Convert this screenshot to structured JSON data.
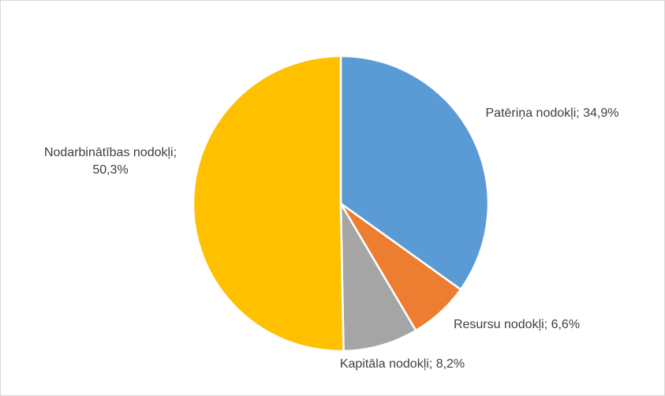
{
  "chart_data": {
    "type": "pie",
    "values": [
      34.9,
      6.6,
      8.2,
      50.3
    ],
    "value_labels": [
      "Patēriņa nodokļi; 34,9%",
      "Resursu nodokļi; 6,6%",
      "Kapitāla nodokļi; 8,2%",
      "Nodarbinātības nodokļi; 50,3%"
    ],
    "colors": [
      "#5b9bd5",
      "#ed7d31",
      "#a5a5a5",
      "#ffc000"
    ]
  }
}
